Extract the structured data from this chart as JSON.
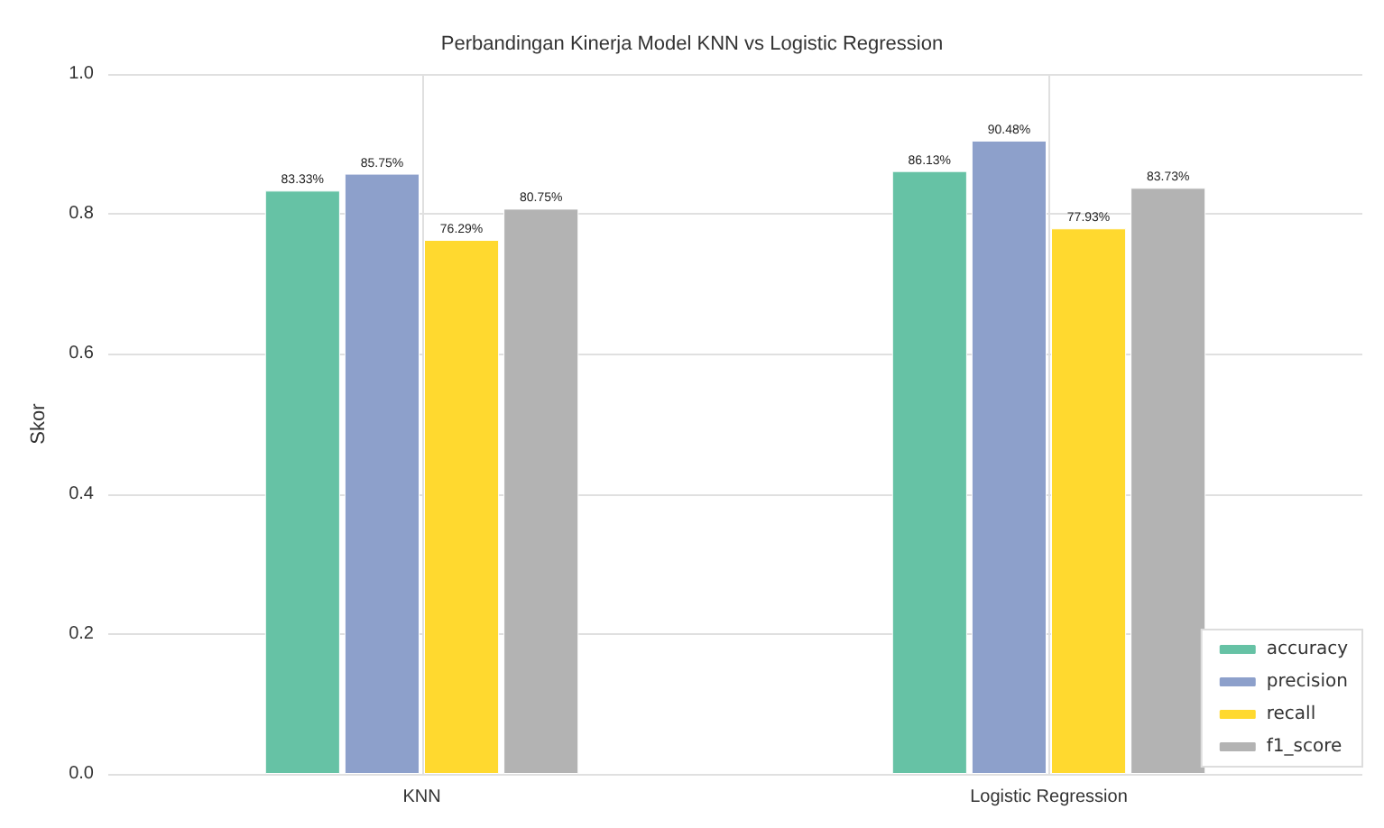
{
  "chart_data": {
    "type": "bar",
    "title": "Perbandingan Kinerja Model KNN vs Logistic Regression",
    "ylabel": "Skor",
    "categories": [
      "KNN",
      "Logistic Regression"
    ],
    "series": [
      {
        "name": "accuracy",
        "color": "#66c2a5",
        "values": [
          0.8333,
          0.8613
        ],
        "value_labels": [
          "83.33%",
          "86.13%"
        ]
      },
      {
        "name": "precision",
        "color": "#8da0cb",
        "values": [
          0.8575,
          0.9048
        ],
        "value_labels": [
          "85.75%",
          "90.48%"
        ]
      },
      {
        "name": "recall",
        "color": "#ffd92f",
        "values": [
          0.7629,
          0.7793
        ],
        "value_labels": [
          "76.29%",
          "77.93%"
        ]
      },
      {
        "name": "f1_score",
        "color": "#b3b3b3",
        "values": [
          0.8075,
          0.8373
        ],
        "value_labels": [
          "80.75%",
          "83.73%"
        ]
      }
    ],
    "ylim": [
      0,
      1
    ],
    "yticks": [
      {
        "value": 0,
        "label": "0.0"
      },
      {
        "value": 0.2,
        "label": "0.2"
      },
      {
        "value": 0.4,
        "label": "0.4"
      },
      {
        "value": 0.6,
        "label": "0.6"
      },
      {
        "value": 0.8,
        "label": "0.8"
      },
      {
        "value": 1,
        "label": "1.0"
      }
    ],
    "grid": true,
    "legend": "bottom right"
  }
}
